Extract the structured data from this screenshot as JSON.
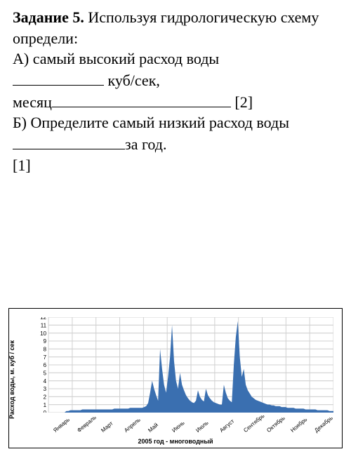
{
  "task": {
    "title": "Задание 5.",
    "intro": "  Используя гидрологическую схему  определи:",
    "lineA_1": "А) самый высокий расход воды ",
    "lineA_2": "  куб/сек,",
    "lineA_3_pre": "месяц",
    "lineA_3_post": " [2]",
    "lineB_1": " Б) Определите самый низкий расход воды ",
    "lineB_2": "за год.",
    "lineB_3": " [1]"
  },
  "chart": {
    "type": "area",
    "y_label": "Расход воды, м. куб / сек",
    "x_title": "2005 год - многоводный",
    "y_min": 0,
    "y_max": 12,
    "y_ticks": [
      0,
      1,
      2,
      3,
      4,
      5,
      6,
      7,
      8,
      9,
      10,
      11,
      12
    ],
    "grid_color": "#d0d0d0",
    "area_color": "#3a6fb0",
    "background_color": "#ffffff",
    "border_color": "#000000",
    "title_fontsize": 9,
    "label_fontsize": 9,
    "tick_fontsize": 8,
    "months": [
      "Январь",
      "Февраль",
      "Март",
      "Апрель",
      "Май",
      "Июнь",
      "Июль",
      "Август",
      "Сентябрь",
      "Октябрь",
      "Ноябрь",
      "Декабрь"
    ],
    "series": [
      0,
      0,
      0,
      0,
      0,
      0,
      0,
      0,
      0,
      0.2,
      0.2,
      0.3,
      0.3,
      0.3,
      0.3,
      0.3,
      0.3,
      0.4,
      0.4,
      0.4,
      0.4,
      0.4,
      0.4,
      0.4,
      0.4,
      0.4,
      0.4,
      0.4,
      0.4,
      0.4,
      0.4,
      0.4,
      0.4,
      0.5,
      0.5,
      0.5,
      0.5,
      0.5,
      0.5,
      0.5,
      0.5,
      0.6,
      0.6,
      0.6,
      0.6,
      0.6,
      0.6,
      0.6,
      0.7,
      0.8,
      1.2,
      2.5,
      4.0,
      3.0,
      2.2,
      1.5,
      8.0,
      5.5,
      3.5,
      2.5,
      4.5,
      7.0,
      11.0,
      6.5,
      4.0,
      3.0,
      5.0,
      3.5,
      2.8,
      2.2,
      1.8,
      1.5,
      1.3,
      1.2,
      1.5,
      2.8,
      2.0,
      1.6,
      1.4,
      3.0,
      2.2,
      1.8,
      1.5,
      1.3,
      1.2,
      1.1,
      1.0,
      1.0,
      3.5,
      2.5,
      1.8,
      1.5,
      1.3,
      6.0,
      9.5,
      11.5,
      7.0,
      4.5,
      5.5,
      3.5,
      2.8,
      2.4,
      2.0,
      1.8,
      1.6,
      1.5,
      1.4,
      1.3,
      1.2,
      1.1,
      1.0,
      1.0,
      0.9,
      0.9,
      0.8,
      0.8,
      0.8,
      0.7,
      0.7,
      0.7,
      0.6,
      0.6,
      0.6,
      0.6,
      0.5,
      0.5,
      0.5,
      0.5,
      0.5,
      0.4,
      0.4,
      0.4,
      0.4,
      0.4,
      0.4,
      0.3,
      0.3,
      0.3,
      0.3,
      0.3,
      0.3,
      0.2,
      0.2,
      0.2
    ]
  }
}
